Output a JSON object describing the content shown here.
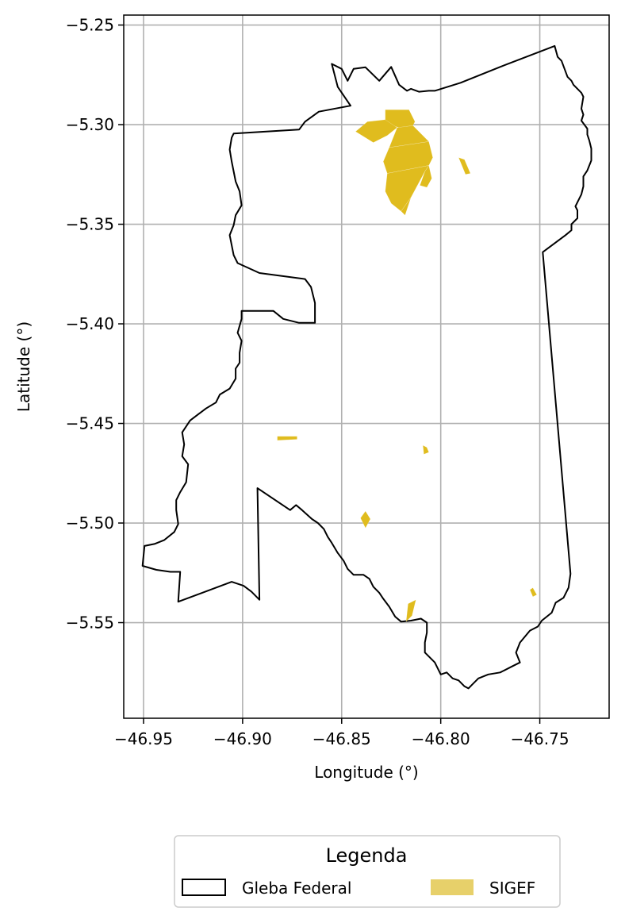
{
  "chart_data": {
    "type": "map",
    "xlabel": "Longitude (°)",
    "ylabel": "Latitude (°)",
    "xlim": [
      -46.96,
      -46.715
    ],
    "ylim": [
      -5.598,
      -5.245
    ],
    "grid": true,
    "x_ticks": [
      -46.95,
      -46.9,
      -46.85,
      -46.8,
      -46.75
    ],
    "x_tick_labels": [
      "−46.95",
      "−46.90",
      "−46.85",
      "−46.80",
      "−46.75"
    ],
    "y_ticks": [
      -5.25,
      -5.3,
      -5.35,
      -5.4,
      -5.45,
      -5.5,
      -5.55
    ],
    "y_tick_labels": [
      "−5.25",
      "−5.30",
      "−5.35",
      "−5.40",
      "−5.45",
      "−5.50",
      "−5.55"
    ],
    "legend": {
      "title": "Legenda",
      "placement": "below",
      "entries": [
        {
          "label": "Gleba Federal",
          "style": "outline",
          "color": "#000000"
        },
        {
          "label": "SIGEF",
          "style": "fill",
          "color": "#E7D06A"
        }
      ]
    },
    "layers": [
      {
        "name": "Gleba Federal",
        "type": "polygon-outline",
        "color": "#000000",
        "polygons": [
          [
            [
              -46.855,
              -5.2695
            ],
            [
              -46.85,
              -5.272
            ],
            [
              -46.847,
              -5.278
            ],
            [
              -46.844,
              -5.272
            ],
            [
              -46.838,
              -5.2712
            ],
            [
              -46.831,
              -5.278
            ],
            [
              -46.825,
              -5.271
            ],
            [
              -46.821,
              -5.28
            ],
            [
              -46.817,
              -5.283
            ],
            [
              -46.815,
              -5.282
            ],
            [
              -46.811,
              -5.2835
            ],
            [
              -46.806,
              -5.283
            ],
            [
              -46.803,
              -5.283
            ],
            [
              -46.79,
              -5.279
            ],
            [
              -46.77,
              -5.271
            ],
            [
              -46.7425,
              -5.2605
            ],
            [
              -46.741,
              -5.266
            ],
            [
              -46.739,
              -5.268
            ],
            [
              -46.736,
              -5.276
            ],
            [
              -46.734,
              -5.278
            ],
            [
              -46.733,
              -5.28
            ],
            [
              -46.729,
              -5.284
            ],
            [
              -46.728,
              -5.286
            ],
            [
              -46.729,
              -5.292
            ],
            [
              -46.728,
              -5.295
            ],
            [
              -46.729,
              -5.298
            ],
            [
              -46.726,
              -5.302
            ],
            [
              -46.726,
              -5.305
            ],
            [
              -46.725,
              -5.308
            ],
            [
              -46.724,
              -5.312
            ],
            [
              -46.724,
              -5.318
            ],
            [
              -46.726,
              -5.323
            ],
            [
              -46.728,
              -5.326
            ],
            [
              -46.728,
              -5.331
            ],
            [
              -46.729,
              -5.335
            ],
            [
              -46.731,
              -5.339
            ],
            [
              -46.732,
              -5.341
            ],
            [
              -46.731,
              -5.343
            ],
            [
              -46.731,
              -5.347
            ],
            [
              -46.734,
              -5.35
            ],
            [
              -46.734,
              -5.353
            ],
            [
              -46.737,
              -5.3555
            ],
            [
              -46.7485,
              -5.364
            ],
            [
              -46.7345,
              -5.5255
            ],
            [
              -46.7355,
              -5.5325
            ],
            [
              -46.738,
              -5.5375
            ],
            [
              -46.742,
              -5.54
            ],
            [
              -46.744,
              -5.545
            ],
            [
              -46.749,
              -5.549
            ],
            [
              -46.751,
              -5.552
            ],
            [
              -46.755,
              -5.554
            ],
            [
              -46.76,
              -5.56
            ],
            [
              -46.762,
              -5.565
            ],
            [
              -46.76,
              -5.57
            ],
            [
              -46.764,
              -5.572
            ],
            [
              -46.77,
              -5.575
            ],
            [
              -46.776,
              -5.576
            ],
            [
              -46.781,
              -5.578
            ],
            [
              -46.784,
              -5.581
            ],
            [
              -46.786,
              -5.583
            ],
            [
              -46.788,
              -5.582
            ],
            [
              -46.791,
              -5.579
            ],
            [
              -46.794,
              -5.578
            ],
            [
              -46.797,
              -5.575
            ],
            [
              -46.8,
              -5.576
            ],
            [
              -46.803,
              -5.57
            ],
            [
              -46.808,
              -5.565
            ],
            [
              -46.808,
              -5.56
            ],
            [
              -46.807,
              -5.555
            ],
            [
              -46.807,
              -5.55
            ],
            [
              -46.81,
              -5.548
            ],
            [
              -46.815,
              -5.549
            ],
            [
              -46.82,
              -5.5495
            ],
            [
              -46.823,
              -5.547
            ],
            [
              -46.826,
              -5.542
            ],
            [
              -46.829,
              -5.538
            ],
            [
              -46.831,
              -5.535
            ],
            [
              -46.834,
              -5.532
            ],
            [
              -46.836,
              -5.528
            ],
            [
              -46.839,
              -5.526
            ],
            [
              -46.844,
              -5.526
            ],
            [
              -46.847,
              -5.523
            ],
            [
              -46.849,
              -5.519
            ],
            [
              -46.852,
              -5.515
            ],
            [
              -46.855,
              -5.51
            ],
            [
              -46.857,
              -5.507
            ],
            [
              -46.859,
              -5.503
            ],
            [
              -46.862,
              -5.5
            ],
            [
              -46.865,
              -5.498
            ],
            [
              -46.87,
              -5.4935
            ],
            [
              -46.873,
              -5.491
            ],
            [
              -46.876,
              -5.4935
            ],
            [
              -46.8925,
              -5.4825
            ],
            [
              -46.8915,
              -5.5385
            ],
            [
              -46.8955,
              -5.5345
            ],
            [
              -46.8995,
              -5.5315
            ],
            [
              -46.9055,
              -5.5295
            ],
            [
              -46.9325,
              -5.5395
            ],
            [
              -46.9315,
              -5.5245
            ],
            [
              -46.9365,
              -5.5245
            ],
            [
              -46.9435,
              -5.5235
            ],
            [
              -46.9505,
              -5.5215
            ],
            [
              -46.9495,
              -5.5115
            ],
            [
              -46.9445,
              -5.5105
            ],
            [
              -46.9395,
              -5.5085
            ],
            [
              -46.9345,
              -5.5045
            ],
            [
              -46.9325,
              -5.5005
            ],
            [
              -46.9335,
              -5.4935
            ],
            [
              -46.9335,
              -5.4885
            ],
            [
              -46.9315,
              -5.4845
            ],
            [
              -46.9285,
              -5.4795
            ],
            [
              -46.9275,
              -5.4705
            ],
            [
              -46.9305,
              -5.4665
            ],
            [
              -46.9295,
              -5.4605
            ],
            [
              -46.9305,
              -5.4545
            ],
            [
              -46.9265,
              -5.4485
            ],
            [
              -46.9225,
              -5.4455
            ],
            [
              -46.9185,
              -5.4425
            ],
            [
              -46.9135,
              -5.4395
            ],
            [
              -46.9115,
              -5.4355
            ],
            [
              -46.9065,
              -5.4325
            ],
            [
              -46.9035,
              -5.4275
            ],
            [
              -46.9035,
              -5.4225
            ],
            [
              -46.9015,
              -5.4195
            ],
            [
              -46.9015,
              -5.4145
            ],
            [
              -46.9005,
              -5.4085
            ],
            [
              -46.9025,
              -5.4045
            ],
            [
              -46.9005,
              -5.3975
            ],
            [
              -46.9005,
              -5.3935
            ],
            [
              -46.8845,
              -5.3935
            ],
            [
              -46.8795,
              -5.3975
            ],
            [
              -46.8715,
              -5.3995
            ],
            [
              -46.8635,
              -5.3995
            ],
            [
              -46.8635,
              -5.3895
            ],
            [
              -46.8655,
              -5.3815
            ],
            [
              -46.8685,
              -5.3775
            ],
            [
              -46.8915,
              -5.3745
            ],
            [
              -46.9025,
              -5.3695
            ],
            [
              -46.9045,
              -5.3655
            ],
            [
              -46.9055,
              -5.3605
            ],
            [
              -46.9065,
              -5.3555
            ],
            [
              -46.9045,
              -5.3505
            ],
            [
              -46.9035,
              -5.3455
            ],
            [
              -46.9005,
              -5.3405
            ],
            [
              -46.9015,
              -5.3335
            ],
            [
              -46.9035,
              -5.3285
            ],
            [
              -46.9045,
              -5.3235
            ],
            [
              -46.9055,
              -5.3185
            ],
            [
              -46.9065,
              -5.3125
            ],
            [
              -46.9055,
              -5.3065
            ],
            [
              -46.9045,
              -5.3045
            ],
            [
              -46.8715,
              -5.3025
            ],
            [
              -46.8685,
              -5.2985
            ],
            [
              -46.8615,
              -5.2935
            ],
            [
              -46.8455,
              -5.2905
            ],
            [
              -46.852,
              -5.281
            ],
            [
              -46.855,
              -5.2695
            ]
          ]
        ]
      },
      {
        "name": "SIGEF",
        "type": "polygon-fill",
        "color": "#E0BC1E",
        "polygons": [
          [
            [
              -46.828,
              -5.2925
            ],
            [
              -46.816,
              -5.2925
            ],
            [
              -46.813,
              -5.2985
            ],
            [
              -46.814,
              -5.3005
            ],
            [
              -46.821,
              -5.3015
            ],
            [
              -46.828,
              -5.2995
            ]
          ],
          [
            [
              -46.837,
              -5.2985
            ],
            [
              -46.828,
              -5.2975
            ],
            [
              -46.822,
              -5.3015
            ],
            [
              -46.827,
              -5.3055
            ],
            [
              -46.834,
              -5.309
            ],
            [
              -46.843,
              -5.3035
            ]
          ],
          [
            [
              -46.822,
              -5.3015
            ],
            [
              -46.814,
              -5.3005
            ],
            [
              -46.806,
              -5.3085
            ],
            [
              -46.826,
              -5.3115
            ]
          ],
          [
            [
              -46.826,
              -5.3115
            ],
            [
              -46.806,
              -5.3085
            ],
            [
              -46.804,
              -5.3165
            ],
            [
              -46.806,
              -5.3205
            ],
            [
              -46.827,
              -5.3245
            ],
            [
              -46.829,
              -5.3185
            ]
          ],
          [
            [
              -46.827,
              -5.3245
            ],
            [
              -46.806,
              -5.3205
            ],
            [
              -46.808,
              -5.3235
            ],
            [
              -46.815,
              -5.3365
            ],
            [
              -46.82,
              -5.3435
            ],
            [
              -46.825,
              -5.3395
            ],
            [
              -46.828,
              -5.3335
            ]
          ],
          [
            [
              -46.82,
              -5.3435
            ],
            [
              -46.815,
              -5.3365
            ],
            [
              -46.818,
              -5.3455
            ]
          ],
          [
            [
              -46.806,
              -5.3205
            ],
            [
              -46.8045,
              -5.327
            ],
            [
              -46.807,
              -5.3315
            ],
            [
              -46.8105,
              -5.3305
            ],
            [
              -46.808,
              -5.3235
            ]
          ],
          [
            [
              -46.791,
              -5.3165
            ],
            [
              -46.788,
              -5.3175
            ],
            [
              -46.785,
              -5.3245
            ],
            [
              -46.7875,
              -5.325
            ]
          ],
          [
            [
              -46.8825,
              -5.4565
            ],
            [
              -46.8725,
              -5.4565
            ],
            [
              -46.8725,
              -5.458
            ],
            [
              -46.8825,
              -5.4585
            ]
          ],
          [
            [
              -46.809,
              -5.461
            ],
            [
              -46.807,
              -5.462
            ],
            [
              -46.806,
              -5.4645
            ],
            [
              -46.8085,
              -5.4655
            ]
          ],
          [
            [
              -46.8405,
              -5.4975
            ],
            [
              -46.838,
              -5.494
            ],
            [
              -46.8355,
              -5.498
            ],
            [
              -46.838,
              -5.5025
            ]
          ],
          [
            [
              -46.8165,
              -5.5405
            ],
            [
              -46.8125,
              -5.5385
            ],
            [
              -46.8145,
              -5.5465
            ],
            [
              -46.8175,
              -5.5495
            ]
          ],
          [
            [
              -46.755,
              -5.5335
            ],
            [
              -46.7535,
              -5.5325
            ],
            [
              -46.7515,
              -5.536
            ],
            [
              -46.7535,
              -5.537
            ]
          ]
        ]
      }
    ]
  }
}
